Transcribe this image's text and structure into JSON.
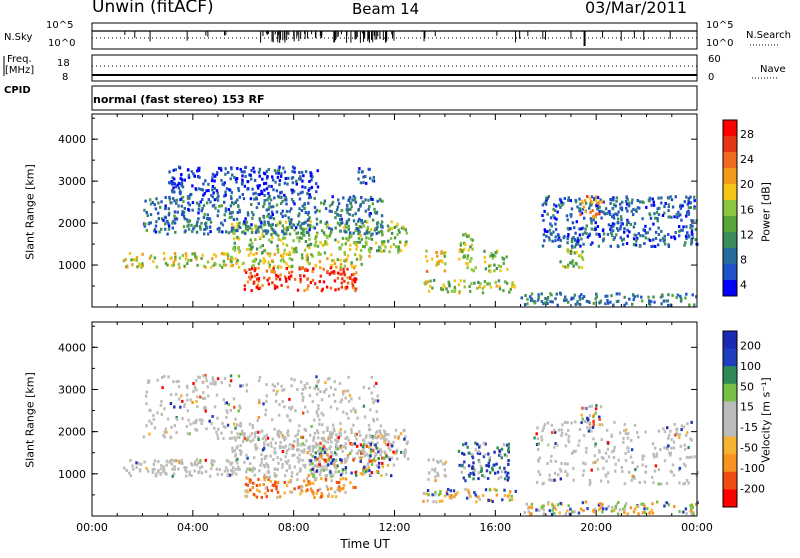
{
  "header": {
    "station": "Unwin (fitACF)",
    "beam": "Beam 14",
    "date": "03/Mar/2011"
  },
  "panels": {
    "nsky_label": "N.Sky",
    "nsky_ticks_left": [
      "10^5",
      "10^0"
    ],
    "nsky_ticks_right": [
      "10^5",
      "10^0"
    ],
    "nsearch_label": "N.Search",
    "freq_label_1": "Freq.",
    "freq_label_2": "[MHz]",
    "freq_ticks_left": [
      "18",
      "8"
    ],
    "nave_ticks_right": [
      "60",
      "0"
    ],
    "nave_label": "Nave",
    "cpid_label": "CPID",
    "cpid_text": "normal (fast stereo) 153 RF"
  },
  "colors": {
    "power": [
      "#0000ff",
      "#1f52c8",
      "#2a6b9e",
      "#3d8c5e",
      "#57a63a",
      "#8cc63f",
      "#f5c518",
      "#f39a1b",
      "#f26a1e",
      "#e63416",
      "#ff0000"
    ],
    "velocity": [
      "#ff0000",
      "#f24b14",
      "#f7931e",
      "#f6b233",
      "#bcbcbc",
      "#bcbcbc",
      "#76c043",
      "#2e8b57",
      "#1f3fbf",
      "#1a2ab3"
    ],
    "ground_scatter": "#bdbcb8"
  },
  "chart_data": [
    {
      "type": "heatmap",
      "name": "power",
      "ylabel": "Slant Range [km]",
      "yticks": [
        1000,
        2000,
        3000,
        4000
      ],
      "ylim": [
        0,
        4600
      ],
      "xlim_hours": [
        0,
        24
      ],
      "colorbar": {
        "title": "Power [dB]",
        "ticks": [
          "28",
          "24",
          "20",
          "16",
          "12",
          "8",
          "4"
        ],
        "range": [
          0,
          30
        ]
      },
      "bands": [
        {
          "t0": 1.2,
          "t1": 11.0,
          "r0": 900,
          "r1": 1250,
          "level": 0.55
        },
        {
          "t0": 5.5,
          "t1": 12.5,
          "r0": 1250,
          "r1": 2000,
          "level": 0.45
        },
        {
          "t0": 6.0,
          "t1": 10.5,
          "r0": 350,
          "r1": 900,
          "level": 0.88
        },
        {
          "t0": 2.0,
          "t1": 11.5,
          "r0": 1700,
          "r1": 2600,
          "level": 0.2
        },
        {
          "t0": 3.0,
          "t1": 9.0,
          "r0": 2600,
          "r1": 3300,
          "level": 0.08
        },
        {
          "t0": 10.5,
          "t1": 11.2,
          "r0": 2900,
          "r1": 3300,
          "level": 0.1
        },
        {
          "t0": 13.0,
          "t1": 16.8,
          "r0": 300,
          "r1": 600,
          "level": 0.5
        },
        {
          "t0": 13.2,
          "t1": 14.0,
          "r0": 800,
          "r1": 1300,
          "level": 0.6
        },
        {
          "t0": 14.5,
          "t1": 15.2,
          "r0": 800,
          "r1": 1700,
          "level": 0.5
        },
        {
          "t0": 15.5,
          "t1": 16.5,
          "r0": 800,
          "r1": 1300,
          "level": 0.45
        },
        {
          "t0": 18.5,
          "t1": 19.5,
          "r0": 900,
          "r1": 1400,
          "level": 0.45
        },
        {
          "t0": 17.8,
          "t1": 24.0,
          "r0": 1400,
          "r1": 2600,
          "level": 0.15
        },
        {
          "t0": 19.3,
          "t1": 20.2,
          "r0": 2100,
          "r1": 2600,
          "level": 0.7
        },
        {
          "t0": 17.0,
          "t1": 24.0,
          "r0": 0,
          "r1": 300,
          "level": 0.25
        }
      ]
    },
    {
      "type": "heatmap",
      "name": "velocity",
      "ylabel": "Slant Range [km]",
      "yticks": [
        1000,
        2000,
        3000,
        4000
      ],
      "ylim": [
        0,
        4600
      ],
      "xlim_hours": [
        0,
        24
      ],
      "xticks": [
        "00:00",
        "04:00",
        "08:00",
        "12:00",
        "16:00",
        "20:00",
        "00:00"
      ],
      "xlabel": "Time UT",
      "colorbar": {
        "title": "Velocity [m s⁻¹]",
        "ticks": [
          "200",
          "100",
          "50",
          "15",
          "-15",
          "-50",
          "-100",
          "-200"
        ],
        "range": [
          -250,
          250
        ]
      },
      "bands": [
        {
          "t0": 1.2,
          "t1": 11.0,
          "r0": 900,
          "r1": 1300,
          "kind": "ground"
        },
        {
          "t0": 5.5,
          "t1": 12.5,
          "r0": 1300,
          "r1": 2000,
          "kind": "ground"
        },
        {
          "t0": 2.0,
          "t1": 11.5,
          "r0": 1800,
          "r1": 3300,
          "kind": "ground_sparse"
        },
        {
          "t0": 6.0,
          "t1": 10.5,
          "r0": 400,
          "r1": 900,
          "kind": "neg"
        },
        {
          "t0": 8.5,
          "t1": 12.0,
          "r0": 900,
          "r1": 1700,
          "kind": "mixed"
        },
        {
          "t0": 13.0,
          "t1": 16.8,
          "r0": 300,
          "r1": 600,
          "kind": "mixed_low"
        },
        {
          "t0": 13.2,
          "t1": 14.0,
          "r0": 800,
          "r1": 1300,
          "kind": "ground"
        },
        {
          "t0": 14.5,
          "t1": 16.5,
          "r0": 800,
          "r1": 1700,
          "kind": "pos"
        },
        {
          "t0": 17.5,
          "t1": 24.0,
          "r0": 700,
          "r1": 2200,
          "kind": "ground_sparse"
        },
        {
          "t0": 19.3,
          "t1": 20.2,
          "r0": 2100,
          "r1": 2600,
          "kind": "mixed"
        },
        {
          "t0": 17.0,
          "t1": 24.0,
          "r0": 0,
          "r1": 300,
          "kind": "mixed_low"
        }
      ]
    }
  ]
}
